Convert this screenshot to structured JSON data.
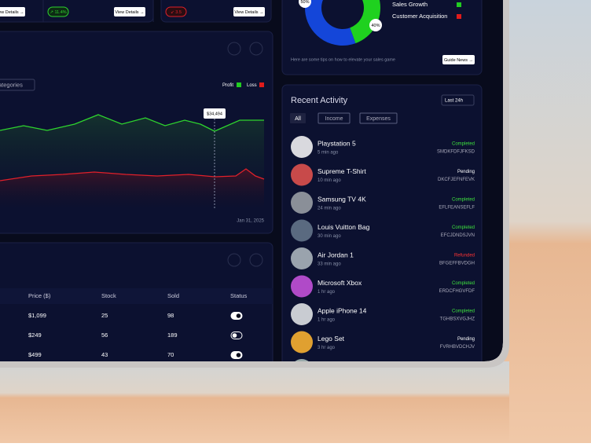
{
  "cards": [
    {
      "button": "View Details →"
    },
    {
      "badge": "↗ 11.4%",
      "button": "View Details →"
    },
    {
      "badge": "↙ 3.5",
      "button": "View Details →"
    }
  ],
  "sales_chart": {
    "dropdown": "ategories",
    "legend": [
      "Profit",
      "Loss"
    ],
    "tooltip": "$34,494",
    "date": "Jan 31, 2025"
  },
  "table": {
    "headers": [
      "Price ($)",
      "Stock",
      "Sold",
      "Status"
    ],
    "rows": [
      [
        "$1,099",
        "25",
        "98"
      ],
      [
        "$249",
        "56",
        "189"
      ],
      [
        "$499",
        "43",
        "70"
      ]
    ],
    "status": [
      true,
      false,
      true
    ]
  },
  "donut": {
    "segments": [
      {
        "name": "Sales Growth",
        "value": 40,
        "label": "40%",
        "color": "#1fd11f"
      },
      {
        "name": "Customer Acquisition",
        "value": 50,
        "label": "50%",
        "color": "#1446d9"
      }
    ],
    "legend_colors": [
      "#22cc22",
      "#e01b1b"
    ],
    "tip": "Here are some tips on how to elevate your sales game",
    "button": "Guide News →"
  },
  "activity": {
    "title": "Recent Activity",
    "range": "Last 24h",
    "tabs": [
      "All",
      "Income",
      "Expenses"
    ],
    "items": [
      {
        "name": "Playstation 5",
        "time": "5 min ago",
        "status": "Completed",
        "code": "SMDKFDFJFKSD",
        "color": "#3ee23e",
        "avatar": "#d9d9de"
      },
      {
        "name": "Supreme T-Shirt",
        "time": "10 min ago",
        "status": "Pending",
        "code": "DKCFJEFNFEVK",
        "color": "#ffffff",
        "avatar": "#c84a4a"
      },
      {
        "name": "Samsung TV 4K",
        "time": "24 min ago",
        "status": "Completed",
        "code": "EFLFEANSEFLF",
        "color": "#3ee23e",
        "avatar": "#8a8f98"
      },
      {
        "name": "Louis Vuitton Bag",
        "time": "30 min ago",
        "status": "Completed",
        "code": "EFCJDNDSJVN",
        "color": "#3ee23e",
        "avatar": "#5a6a80"
      },
      {
        "name": "Air Jordan 1",
        "time": "33 min ago",
        "status": "Refunded",
        "code": "BFGEFFBVDGH",
        "color": "#ff3333",
        "avatar": "#9aa3ad"
      },
      {
        "name": "Microsoft Xbox",
        "time": "1 hr ago",
        "status": "Completed",
        "code": "ERDCFHGVFDF",
        "color": "#3ee23e",
        "avatar": "#b04ac8"
      },
      {
        "name": "Apple iPhone 14",
        "time": "1 hr ago",
        "status": "Completed",
        "code": "TGHBSXVGJHZ",
        "color": "#3ee23e",
        "avatar": "#c9ccd2"
      },
      {
        "name": "Lego Set",
        "time": "3 hr ago",
        "status": "Pending",
        "code": "FVRHBVDCHJV",
        "color": "#ffffff",
        "avatar": "#e0a030"
      }
    ]
  }
}
